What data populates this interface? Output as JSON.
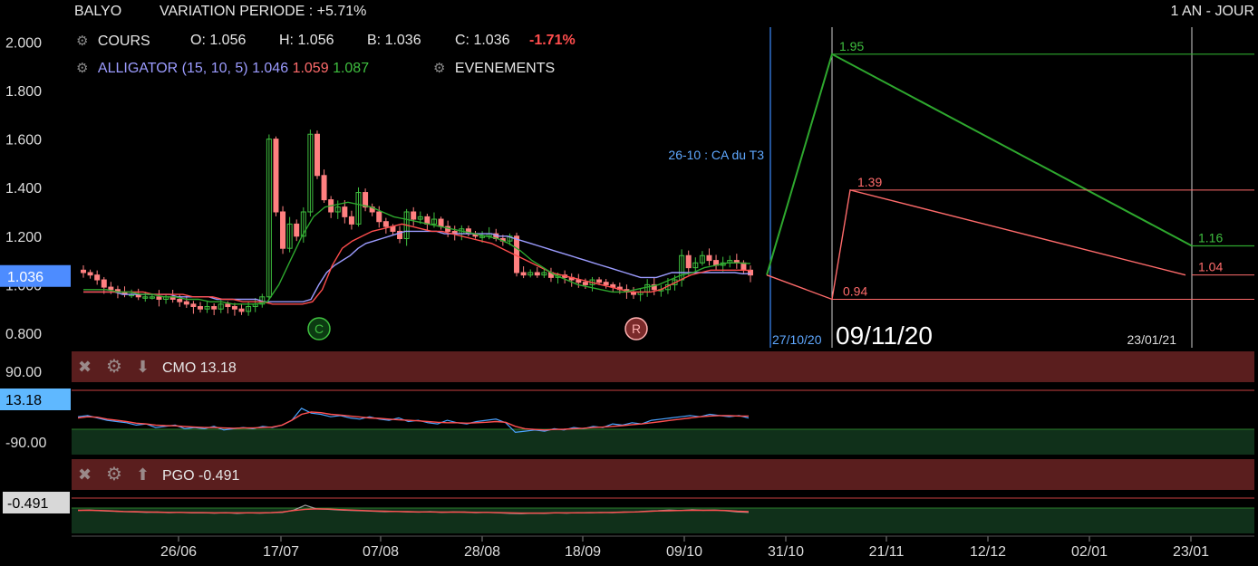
{
  "header": {
    "symbol": "BALYO",
    "variation": "VARIATION PERIODE : +5.71%",
    "period": "1 AN - JOUR"
  },
  "legend": {
    "cours_label": "COURS",
    "open": "O: 1.056",
    "high": "H: 1.056",
    "low": "B: 1.036",
    "close": "C: 1.036",
    "change": "-1.71%",
    "alligator_label": "ALLIGATOR (15, 10, 5)",
    "alligator_blue": "1.046",
    "alligator_red": "1.059",
    "alligator_green": "1.087",
    "events_label": "EVENEMENTS"
  },
  "colors": {
    "bullish": "#3fbf3f",
    "bearish": "#ff8080",
    "alligator_blue": "#9c9cff",
    "alligator_red": "#ff4d4d",
    "alligator_green": "#2ea82e",
    "target_high": "#2ea82e",
    "target_low": "#ff6b6b",
    "event_line": "#3c8cff",
    "price_badge": "#4d8cff",
    "cmo_badge": "#5fb8ff",
    "panel_header": "#5a1e1e",
    "panel_zone": "#10301a"
  },
  "chart_data": [
    {
      "type": "candlestick",
      "name": "COURS",
      "ylim": [
        0.78,
        2.08
      ],
      "yticks": [
        "2.000",
        "1.800",
        "1.600",
        "1.400",
        "1.200",
        "1.000",
        "0.800"
      ],
      "last_price_label": "1.036",
      "x_tick_labels": [
        "26/06",
        "17/07",
        "07/08",
        "28/08",
        "18/09",
        "09/10",
        "31/10",
        "21/11",
        "12/12",
        "02/01",
        "23/01"
      ],
      "close_series": [
        1.05,
        1.04,
        1.02,
        0.99,
        0.98,
        0.97,
        0.96,
        0.96,
        0.95,
        0.95,
        0.95,
        0.94,
        0.95,
        0.94,
        0.93,
        0.92,
        0.91,
        0.9,
        0.91,
        0.9,
        0.92,
        0.91,
        0.9,
        0.89,
        0.91,
        0.92,
        0.95,
        1.6,
        1.3,
        1.15,
        1.25,
        1.2,
        1.3,
        1.62,
        1.45,
        1.35,
        1.3,
        1.32,
        1.28,
        1.25,
        1.38,
        1.32,
        1.3,
        1.26,
        1.24,
        1.22,
        1.19,
        1.3,
        1.27,
        1.28,
        1.25,
        1.27,
        1.24,
        1.22,
        1.21,
        1.23,
        1.21,
        1.2,
        1.2,
        1.21,
        1.19,
        1.18,
        1.2,
        1.05,
        1.04,
        1.05,
        1.04,
        1.05,
        1.03,
        1.04,
        1.03,
        1.02,
        1.01,
        1.0,
        1.02,
        1.01,
        1.0,
        0.99,
        0.98,
        0.97,
        0.96,
        0.97,
        1.0,
        0.98,
        0.98,
        1.0,
        1.02,
        1.12,
        1.07,
        1.09,
        1.12,
        1.1,
        1.08,
        1.09,
        1.1,
        1.09,
        1.06,
        1.04
      ],
      "alligator": {
        "blue": [
          0.97,
          0.97,
          0.97,
          0.97,
          0.97,
          0.96,
          0.96,
          0.96,
          0.96,
          0.96,
          0.96,
          0.96,
          0.95,
          0.95,
          0.95,
          0.95,
          0.95,
          0.94,
          0.94,
          0.94,
          0.94,
          0.94,
          0.94,
          0.93,
          0.93,
          0.93,
          0.93,
          0.93,
          0.93,
          0.94,
          1.0,
          1.05,
          1.08,
          1.1,
          1.12,
          1.15,
          1.17,
          1.18,
          1.19,
          1.2,
          1.21,
          1.22,
          1.22,
          1.22,
          1.22,
          1.22,
          1.21,
          1.21,
          1.21,
          1.21,
          1.21,
          1.21,
          1.21,
          1.2,
          1.2,
          1.19,
          1.18,
          1.17,
          1.16,
          1.15,
          1.14,
          1.13,
          1.12,
          1.11,
          1.1,
          1.09,
          1.08,
          1.07,
          1.06,
          1.05,
          1.04,
          1.03,
          1.03,
          1.03,
          1.04,
          1.05,
          1.05,
          1.05,
          1.05,
          1.05,
          1.05,
          1.05,
          1.05,
          1.05,
          1.045,
          1.046
        ],
        "red": [
          0.97,
          0.97,
          0.97,
          0.97,
          0.97,
          0.97,
          0.97,
          0.96,
          0.96,
          0.96,
          0.96,
          0.95,
          0.95,
          0.95,
          0.94,
          0.94,
          0.93,
          0.93,
          0.93,
          0.92,
          0.92,
          0.92,
          0.92,
          0.93,
          0.98,
          1.08,
          1.15,
          1.18,
          1.2,
          1.22,
          1.23,
          1.24,
          1.25,
          1.24,
          1.23,
          1.22,
          1.22,
          1.21,
          1.2,
          1.19,
          1.18,
          1.17,
          1.15,
          1.13,
          1.11,
          1.09,
          1.07,
          1.05,
          1.04,
          1.03,
          1.02,
          1.01,
          1.0,
          0.99,
          0.98,
          0.97,
          0.97,
          0.97,
          0.98,
          1.0,
          1.02,
          1.04,
          1.05,
          1.06,
          1.06,
          1.06,
          1.06,
          1.059
        ],
        "green": [
          0.98,
          0.98,
          0.98,
          0.97,
          0.97,
          0.96,
          0.96,
          0.95,
          0.95,
          0.94,
          0.94,
          0.93,
          0.93,
          0.92,
          0.92,
          0.92,
          0.93,
          1.0,
          1.1,
          1.2,
          1.28,
          1.32,
          1.33,
          1.34,
          1.33,
          1.32,
          1.3,
          1.28,
          1.27,
          1.26,
          1.25,
          1.24,
          1.23,
          1.22,
          1.21,
          1.2,
          1.19,
          1.17,
          1.14,
          1.1,
          1.07,
          1.04,
          1.02,
          1.0,
          0.99,
          0.98,
          0.97,
          0.97,
          0.98,
          0.99,
          1.0,
          1.02,
          1.04,
          1.05,
          1.07,
          1.08,
          1.09,
          1.09,
          1.087
        ]
      },
      "event": {
        "label": "26-10 : CA du T3",
        "date": "27/10/20"
      },
      "current_date": "09/11/20",
      "horizon_date": "23/01/21",
      "targets": {
        "high": "1.95",
        "low": "0.94",
        "mid_high": "1.39",
        "end_high": "1.16",
        "end_low": "1.04"
      }
    },
    {
      "type": "line",
      "name": "CMO",
      "label": "CMO 13.18",
      "value_label": "13.18",
      "ylim": [
        -100,
        100
      ],
      "yticks": [
        "90.00",
        "-90.00"
      ],
      "series": [
        {
          "name": "CMO",
          "values": [
            5,
            10,
            0,
            -10,
            -15,
            -20,
            -30,
            -25,
            -40,
            -35,
            -30,
            -45,
            -40,
            -45,
            -35,
            -50,
            -45,
            -40,
            -45,
            -35,
            -40,
            -30,
            -10,
            40,
            20,
            15,
            5,
            10,
            0,
            -5,
            5,
            -5,
            -10,
            0,
            -15,
            -10,
            -20,
            -25,
            -10,
            -20,
            -25,
            -15,
            -10,
            -5,
            -20,
            -60,
            -55,
            -50,
            -55,
            -45,
            -50,
            -40,
            -45,
            -35,
            -40,
            -25,
            -30,
            -20,
            -25,
            -10,
            -5,
            0,
            5,
            10,
            5,
            15,
            10,
            5,
            10,
            0
          ]
        },
        {
          "name": "Moyenne",
          "values": [
            0,
            5,
            3,
            -5,
            -10,
            -15,
            -22,
            -25,
            -30,
            -32,
            -33,
            -36,
            -38,
            -40,
            -40,
            -42,
            -43,
            -42,
            -42,
            -40,
            -38,
            -30,
            -10,
            15,
            25,
            22,
            15,
            12,
            8,
            4,
            0,
            -2,
            -5,
            -8,
            -10,
            -12,
            -15,
            -18,
            -20,
            -20,
            -22,
            -20,
            -18,
            -15,
            -18,
            -35,
            -45,
            -48,
            -50,
            -48,
            -47,
            -45,
            -43,
            -40,
            -38,
            -35,
            -32,
            -28,
            -25,
            -20,
            -15,
            -10,
            -5,
            0,
            5,
            8,
            10,
            10,
            8,
            8
          ]
        }
      ]
    },
    {
      "type": "line",
      "name": "PGO",
      "label": "PGO -0.491",
      "value_label": "-0.491",
      "ylim": [
        -4,
        4
      ],
      "series": [
        {
          "name": "PGO",
          "values": [
            0.3,
            0.5,
            0.2,
            0,
            -0.2,
            -0.3,
            -0.5,
            -0.4,
            -0.6,
            -0.5,
            -0.7,
            -0.6,
            -0.8,
            -0.6,
            -0.9,
            -0.7,
            -0.8,
            -0.6,
            -0.5,
            0.5,
            2.5,
            1,
            0.8,
            0.5,
            0.3,
            0.2,
            0,
            -0.2,
            -0.1,
            -0.3,
            -0.4,
            -0.2,
            -0.5,
            -0.3,
            -0.4,
            -0.6,
            -0.5,
            -0.7,
            -0.9,
            -1,
            -0.8,
            -0.9,
            -0.7,
            -0.8,
            -0.6,
            -0.7,
            -0.5,
            -0.6,
            -0.4,
            -0.3,
            0,
            0.2,
            0.5,
            0.3,
            0.6,
            0.4,
            0.5,
            0.2,
            -0.3,
            -0.5
          ]
        },
        {
          "name": "Moyenne",
          "values": [
            0.4,
            0.4,
            0.3,
            0.1,
            -0.1,
            -0.2,
            -0.3,
            -0.4,
            -0.5,
            -0.5,
            -0.6,
            -0.6,
            -0.7,
            -0.7,
            -0.7,
            -0.7,
            -0.7,
            -0.6,
            -0.3,
            0.3,
            0.8,
            1,
            0.9,
            0.7,
            0.5,
            0.3,
            0.1,
            0,
            -0.1,
            -0.2,
            -0.3,
            -0.3,
            -0.4,
            -0.4,
            -0.4,
            -0.5,
            -0.5,
            -0.6,
            -0.7,
            -0.8,
            -0.8,
            -0.8,
            -0.7,
            -0.7,
            -0.7,
            -0.6,
            -0.6,
            -0.5,
            -0.4,
            -0.3,
            -0.1,
            0.1,
            0.2,
            0.3,
            0.4,
            0.4,
            0.4,
            0.3,
            0,
            -0.2
          ]
        }
      ]
    }
  ]
}
